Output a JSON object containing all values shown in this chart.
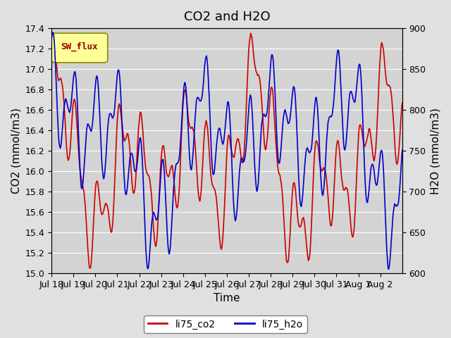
{
  "title": "CO2 and H2O",
  "xlabel": "Time",
  "ylabel_left": "CO2 (mmol/m3)",
  "ylabel_right": "H2O (mmol/m3)",
  "co2_ylim": [
    15.0,
    17.4
  ],
  "h2o_ylim": [
    600,
    900
  ],
  "co2_yticks": [
    15.0,
    15.2,
    15.4,
    15.6,
    15.8,
    16.0,
    16.2,
    16.4,
    16.6,
    16.8,
    17.0,
    17.2,
    17.4
  ],
  "h2o_yticks": [
    600,
    650,
    700,
    750,
    800,
    850,
    900
  ],
  "xtick_labels": [
    "Jul 18",
    "Jul 19",
    "Jul 20",
    "Jul 21",
    "Jul 22",
    "Jul 23",
    "Jul 24",
    "Jul 25",
    "Jul 26",
    "Jul 27",
    "Jul 28",
    "Jul 29",
    "Jul 30",
    "Jul 31",
    "Aug 1",
    "Aug 2"
  ],
  "co2_color": "#cc0000",
  "h2o_color": "#0000cc",
  "fig_bg_color": "#e0e0e0",
  "plot_bg_color": "#d3d3d3",
  "grid_color": "#ffffff",
  "sw_flux_bg": "#ffff99",
  "sw_flux_edge": "#888800",
  "sw_flux_text_color": "#990000",
  "title_fontsize": 13,
  "axis_fontsize": 11,
  "tick_fontsize": 9,
  "legend_fontsize": 10,
  "line_width": 1.2
}
